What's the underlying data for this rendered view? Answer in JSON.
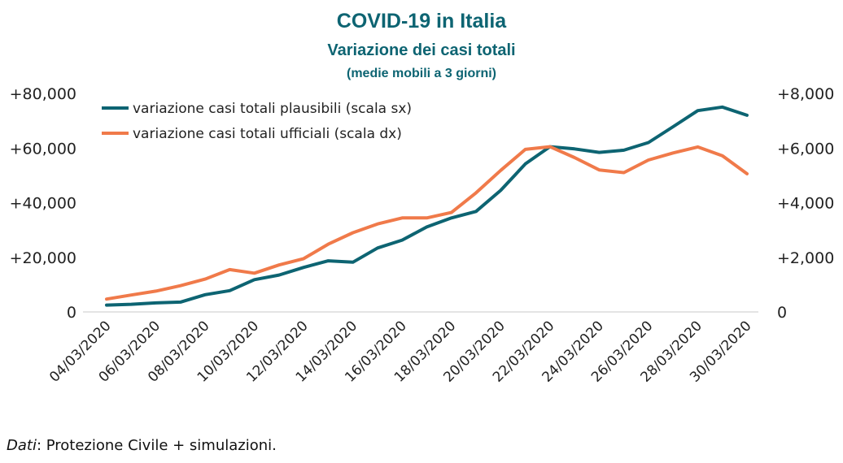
{
  "header": {
    "title": "COVID-19 in Italia",
    "subtitle": "Variazione dei casi totali",
    "note": "(medie mobili a 3 giorni)"
  },
  "source": {
    "label": "Dati",
    "text": ": Protezione Civile + simulazioni."
  },
  "chart_data": {
    "type": "line",
    "dual_axis": true,
    "x": [
      "04/03/2020",
      "05/03/2020",
      "06/03/2020",
      "07/03/2020",
      "08/03/2020",
      "09/03/2020",
      "10/03/2020",
      "11/03/2020",
      "12/03/2020",
      "13/03/2020",
      "14/03/2020",
      "15/03/2020",
      "16/03/2020",
      "17/03/2020",
      "18/03/2020",
      "19/03/2020",
      "20/03/2020",
      "21/03/2020",
      "22/03/2020",
      "23/03/2020",
      "24/03/2020",
      "25/03/2020",
      "26/03/2020",
      "27/03/2020",
      "28/03/2020",
      "29/03/2020",
      "30/03/2020"
    ],
    "x_tick_labels": [
      "04/03/2020",
      "06/03/2020",
      "08/03/2020",
      "10/03/2020",
      "12/03/2020",
      "14/03/2020",
      "16/03/2020",
      "18/03/2020",
      "20/03/2020",
      "22/03/2020",
      "24/03/2020",
      "26/03/2020",
      "28/03/2020",
      "30/03/2020"
    ],
    "y_left": {
      "lim": [
        0,
        80000
      ],
      "ticks": [
        0,
        20000,
        40000,
        60000,
        80000
      ],
      "tick_labels": [
        "0",
        "+20,000",
        "+40,000",
        "+60,000",
        "+80,000"
      ]
    },
    "y_right": {
      "lim": [
        0,
        8000
      ],
      "ticks": [
        0,
        2000,
        4000,
        6000,
        8000
      ],
      "tick_labels": [
        "0",
        "+2,000",
        "+4,000",
        "+6,000",
        "+8,000"
      ]
    },
    "series": [
      {
        "name": "variazione casi totali plausibili (scala sx)",
        "axis": "left",
        "color": "#0d6472",
        "values": [
          2500,
          2800,
          3300,
          3600,
          6300,
          7800,
          11800,
          13500,
          16300,
          18700,
          18200,
          23400,
          26300,
          31100,
          34400,
          36800,
          44500,
          54200,
          60500,
          59700,
          58400,
          59200,
          62000,
          67800,
          73700,
          75000,
          72000
        ]
      },
      {
        "name": "variazione casi totali ufficiali (scala dx)",
        "axis": "right",
        "color": "#f07a4a",
        "values": [
          470,
          620,
          760,
          960,
          1200,
          1550,
          1420,
          1720,
          1950,
          2480,
          2900,
          3220,
          3440,
          3440,
          3640,
          4360,
          5180,
          5950,
          6050,
          5650,
          5200,
          5100,
          5560,
          5820,
          6040,
          5720,
          5060
        ]
      }
    ],
    "legend": "top-left",
    "grid": false
  }
}
